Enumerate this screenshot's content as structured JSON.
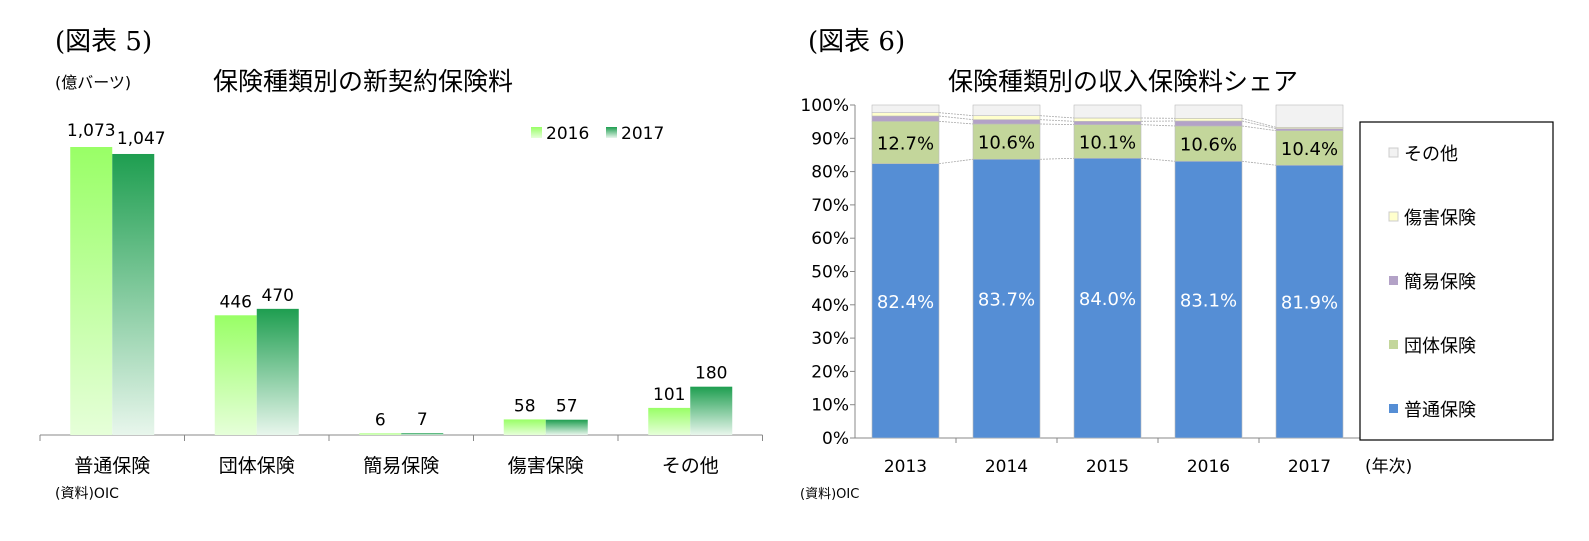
{
  "chart_data": [
    {
      "type": "bar",
      "figure_label": "(図表 5)",
      "title": "保険種類別の新契約保険料",
      "ylabel": "(億バーツ)",
      "source": "(資料)OIC",
      "categories": [
        "普通保険",
        "団体保険",
        "簡易保険",
        "傷害保険",
        "その他"
      ],
      "series": [
        {
          "name": "2016",
          "values": [
            1073,
            446,
            6,
            58,
            101
          ],
          "labels": [
            "1,073",
            "446",
            "6",
            "58",
            "101"
          ],
          "color": "#99ff66"
        },
        {
          "name": "2017",
          "values": [
            1047,
            470,
            7,
            57,
            180
          ],
          "labels": [
            "1,047",
            "470",
            "7",
            "57",
            "180"
          ],
          "color": "#1e9e50"
        }
      ],
      "ylim": [
        0,
        1100
      ],
      "legend": "top-right",
      "grid": false
    },
    {
      "type": "bar",
      "stacked": true,
      "figure_label": "(図表 6)",
      "title": "保険種類別の収入保険料シェア",
      "xlabel": "(年次)",
      "source": "(資料)OIC",
      "categories": [
        "2013",
        "2014",
        "2015",
        "2016",
        "2017"
      ],
      "yticks": [
        "0%",
        "10%",
        "20%",
        "30%",
        "40%",
        "50%",
        "60%",
        "70%",
        "80%",
        "90%",
        "100%"
      ],
      "ylim": [
        0,
        100
      ],
      "series": [
        {
          "name": "普通保険",
          "values": [
            82.4,
            83.7,
            84.0,
            83.1,
            81.9
          ],
          "labels": [
            "82.4%",
            "83.7%",
            "84.0%",
            "83.1%",
            "81.9%"
          ],
          "color": "#558ed5"
        },
        {
          "name": "団体保険",
          "values": [
            12.7,
            10.6,
            10.1,
            10.6,
            10.4
          ],
          "labels": [
            "12.7%",
            "10.6%",
            "10.1%",
            "10.6%",
            "10.4%"
          ],
          "color": "#c3d69b"
        },
        {
          "name": "簡易保険",
          "values": [
            1.6,
            1.3,
            1.0,
            1.5,
            0.6
          ],
          "color": "#b3a2c7"
        },
        {
          "name": "傷害保険",
          "values": [
            1.0,
            1.2,
            1.0,
            0.8,
            0.4
          ],
          "color": "#ffffcc"
        },
        {
          "name": "その他",
          "values": [
            2.3,
            3.2,
            3.9,
            4.0,
            6.7
          ],
          "color": "#f2f2f2"
        }
      ],
      "legend": "right"
    }
  ]
}
